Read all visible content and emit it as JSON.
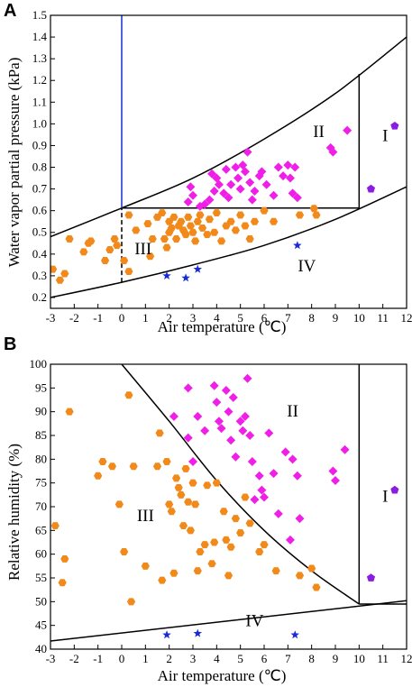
{
  "chart_data": [
    {
      "panel": "A",
      "type": "scatter",
      "xlabel": "Air temperature (℃)",
      "ylabel": "Water vapor partial pressure (kPa)",
      "xlim": [
        -3,
        12
      ],
      "ylim": [
        0.15,
        1.5
      ],
      "xticks": [
        -3,
        -2,
        -1,
        0,
        1,
        2,
        3,
        4,
        5,
        6,
        7,
        8,
        9,
        10,
        11,
        12
      ],
      "yticks": [
        0.2,
        0.3,
        0.4,
        0.5,
        0.6,
        0.7,
        0.8,
        0.9,
        1.0,
        1.1,
        1.2,
        1.3,
        1.4,
        1.5
      ],
      "ytick_labels": [
        "0.2",
        "0.3",
        "0.4",
        "0.5",
        "0.6",
        "0.7",
        "0.8",
        "0.9",
        "1.0",
        "1.1",
        "1.2",
        "1.3",
        "1.4",
        "1.5"
      ],
      "region_labels": [
        {
          "text": "I",
          "x": 11.1,
          "y": 0.92
        },
        {
          "text": "II",
          "x": 8.3,
          "y": 0.94
        },
        {
          "text": "III",
          "x": 0.9,
          "y": 0.4
        },
        {
          "text": "IV",
          "x": 7.8,
          "y": 0.32
        }
      ],
      "boundaries": [
        {
          "name": "upper-curve",
          "kind": "curve",
          "points": [
            [
              -3,
              0.48
            ],
            [
              0,
              0.612
            ],
            [
              3,
              0.75
            ],
            [
              6,
              0.93
            ],
            [
              9,
              1.14
            ],
            [
              12,
              1.4
            ]
          ],
          "color": "#000000",
          "dash": false
        },
        {
          "name": "lower-curve",
          "kind": "curve",
          "points": [
            [
              -3,
              0.2
            ],
            [
              0,
              0.27
            ],
            [
              3,
              0.35
            ],
            [
              6,
              0.44
            ],
            [
              9,
              0.56
            ],
            [
              12,
              0.71
            ]
          ],
          "color": "#000000",
          "dash": false
        },
        {
          "name": "horizontal-0.61",
          "kind": "line",
          "points": [
            [
              0,
              0.612
            ],
            [
              10,
              0.612
            ]
          ],
          "color": "#000000",
          "dash": false
        },
        {
          "name": "vertical-10",
          "kind": "line",
          "points": [
            [
              10,
              0.612
            ],
            [
              10,
              1.23
            ]
          ],
          "color": "#000000",
          "dash": false
        },
        {
          "name": "blue-vertical-0",
          "kind": "line",
          "points": [
            [
              0,
              0.612
            ],
            [
              0,
              1.5
            ]
          ],
          "color": "#1a2bd6",
          "dash": false
        },
        {
          "name": "dashed-vertical-0",
          "kind": "line",
          "points": [
            [
              0,
              0.27
            ],
            [
              0,
              0.612
            ]
          ],
          "color": "#000000",
          "dash": true
        }
      ],
      "series": [
        {
          "marker": "hexagon",
          "color": "#f28a1b",
          "points": [
            [
              -2.9,
              0.33
            ],
            [
              -2.6,
              0.28
            ],
            [
              -2.4,
              0.31
            ],
            [
              -2.2,
              0.47
            ],
            [
              -1.6,
              0.41
            ],
            [
              -1.4,
              0.45
            ],
            [
              -1.3,
              0.46
            ],
            [
              -0.7,
              0.37
            ],
            [
              -0.5,
              0.42
            ],
            [
              -0.3,
              0.47
            ],
            [
              -0.2,
              0.44
            ],
            [
              0.1,
              0.37
            ],
            [
              0.3,
              0.32
            ],
            [
              0.3,
              0.58
            ],
            [
              0.6,
              0.51
            ],
            [
              1.1,
              0.54
            ],
            [
              1.2,
              0.39
            ],
            [
              1.3,
              0.47
            ],
            [
              1.5,
              0.57
            ],
            [
              1.7,
              0.59
            ],
            [
              1.8,
              0.47
            ],
            [
              1.9,
              0.43
            ],
            [
              2.0,
              0.5
            ],
            [
              2.0,
              0.55
            ],
            [
              2.1,
              0.52
            ],
            [
              2.2,
              0.57
            ],
            [
              2.3,
              0.47
            ],
            [
              2.4,
              0.53
            ],
            [
              2.5,
              0.55
            ],
            [
              2.6,
              0.51
            ],
            [
              2.7,
              0.49
            ],
            [
              2.8,
              0.57
            ],
            [
              2.9,
              0.53
            ],
            [
              3.0,
              0.5
            ],
            [
              3.1,
              0.46
            ],
            [
              3.2,
              0.55
            ],
            [
              3.3,
              0.58
            ],
            [
              3.4,
              0.52
            ],
            [
              3.6,
              0.49
            ],
            [
              3.7,
              0.56
            ],
            [
              3.9,
              0.5
            ],
            [
              4.0,
              0.59
            ],
            [
              4.2,
              0.46
            ],
            [
              4.4,
              0.53
            ],
            [
              4.6,
              0.55
            ],
            [
              4.8,
              0.51
            ],
            [
              5.0,
              0.58
            ],
            [
              5.2,
              0.53
            ],
            [
              5.4,
              0.47
            ],
            [
              5.6,
              0.55
            ],
            [
              6.0,
              0.6
            ],
            [
              6.4,
              0.55
            ],
            [
              7.5,
              0.58
            ],
            [
              8.1,
              0.61
            ],
            [
              8.2,
              0.58
            ]
          ]
        },
        {
          "marker": "diamond",
          "color": "#f01fe8",
          "points": [
            [
              2.8,
              0.64
            ],
            [
              2.9,
              0.71
            ],
            [
              3.0,
              0.67
            ],
            [
              3.3,
              0.62
            ],
            [
              3.5,
              0.63
            ],
            [
              3.7,
              0.65
            ],
            [
              3.8,
              0.77
            ],
            [
              3.9,
              0.69
            ],
            [
              4.0,
              0.75
            ],
            [
              4.1,
              0.72
            ],
            [
              4.3,
              0.68
            ],
            [
              4.4,
              0.79
            ],
            [
              4.5,
              0.66
            ],
            [
              4.6,
              0.72
            ],
            [
              4.8,
              0.8
            ],
            [
              4.9,
              0.75
            ],
            [
              5.0,
              0.7
            ],
            [
              5.1,
              0.81
            ],
            [
              5.2,
              0.78
            ],
            [
              5.3,
              0.87
            ],
            [
              5.4,
              0.73
            ],
            [
              5.5,
              0.65
            ],
            [
              5.6,
              0.69
            ],
            [
              5.8,
              0.76
            ],
            [
              5.9,
              0.78
            ],
            [
              6.1,
              0.72
            ],
            [
              6.4,
              0.67
            ],
            [
              6.6,
              0.8
            ],
            [
              6.8,
              0.76
            ],
            [
              7.0,
              0.81
            ],
            [
              7.1,
              0.75
            ],
            [
              7.2,
              0.68
            ],
            [
              7.3,
              0.8
            ],
            [
              7.4,
              0.66
            ],
            [
              8.8,
              0.89
            ],
            [
              8.9,
              0.87
            ],
            [
              9.5,
              0.97
            ]
          ]
        },
        {
          "marker": "pentagon",
          "color": "#8a1de0",
          "points": [
            [
              10.5,
              0.7
            ],
            [
              11.5,
              0.99
            ]
          ]
        },
        {
          "marker": "star",
          "color": "#1a2bd6",
          "points": [
            [
              1.9,
              0.3
            ],
            [
              2.7,
              0.29
            ],
            [
              3.2,
              0.33
            ],
            [
              7.4,
              0.44
            ]
          ]
        }
      ]
    },
    {
      "panel": "B",
      "type": "scatter",
      "xlabel": "Air temperature (℃)",
      "ylabel": "Relative humidity (%)",
      "xlim": [
        -3,
        12
      ],
      "ylim": [
        40,
        100
      ],
      "xticks": [
        -3,
        -2,
        -1,
        0,
        1,
        2,
        3,
        4,
        5,
        6,
        7,
        8,
        9,
        10,
        11,
        12
      ],
      "yticks": [
        40,
        45,
        50,
        55,
        60,
        65,
        70,
        75,
        80,
        85,
        90,
        95,
        100
      ],
      "ytick_labels": [
        "40",
        "45",
        "50",
        "55",
        "60",
        "65",
        "70",
        "75",
        "80",
        "85",
        "90",
        "95",
        "100"
      ],
      "region_labels": [
        {
          "text": "I",
          "x": 11.1,
          "y": 71
        },
        {
          "text": "II",
          "x": 7.2,
          "y": 89
        },
        {
          "text": "III",
          "x": 1.0,
          "y": 67
        },
        {
          "text": "IV",
          "x": 5.6,
          "y": 44.8
        }
      ],
      "boundaries": [
        {
          "name": "dividing-curve",
          "kind": "curve",
          "points": [
            [
              0,
              100
            ],
            [
              2,
              88
            ],
            [
              4,
              75.5
            ],
            [
              6,
              65
            ],
            [
              8,
              56.5
            ],
            [
              10,
              49.5
            ]
          ],
          "color": "#000000",
          "dash": false
        },
        {
          "name": "vertical-10",
          "kind": "line",
          "points": [
            [
              10,
              49.5
            ],
            [
              10,
              100
            ]
          ],
          "color": "#000000",
          "dash": false
        },
        {
          "name": "horizontal-49.5",
          "kind": "line",
          "points": [
            [
              10,
              49.5
            ],
            [
              12,
              49.5
            ]
          ],
          "color": "#000000",
          "dash": false
        },
        {
          "name": "lower-line",
          "kind": "line",
          "points": [
            [
              -3,
              41.7
            ],
            [
              12,
              50.2
            ]
          ],
          "color": "#000000",
          "dash": false
        }
      ],
      "series": [
        {
          "marker": "hexagon",
          "color": "#f28a1b",
          "points": [
            [
              -2.8,
              66
            ],
            [
              -2.5,
              54
            ],
            [
              -2.4,
              59
            ],
            [
              -2.2,
              90
            ],
            [
              -1.0,
              76.5
            ],
            [
              -0.8,
              79.5
            ],
            [
              -0.4,
              78.5
            ],
            [
              -0.1,
              70.5
            ],
            [
              0.1,
              60.5
            ],
            [
              0.3,
              93.5
            ],
            [
              0.4,
              50
            ],
            [
              0.5,
              78.5
            ],
            [
              1.0,
              57.5
            ],
            [
              1.5,
              78.5
            ],
            [
              1.6,
              85.5
            ],
            [
              1.7,
              54.5
            ],
            [
              1.9,
              79.5
            ],
            [
              2.0,
              70.5
            ],
            [
              2.1,
              69
            ],
            [
              2.2,
              56
            ],
            [
              2.3,
              76
            ],
            [
              2.4,
              74
            ],
            [
              2.5,
              72.5
            ],
            [
              2.6,
              66
            ],
            [
              2.7,
              78
            ],
            [
              2.8,
              71
            ],
            [
              2.9,
              65
            ],
            [
              3.0,
              75
            ],
            [
              3.1,
              70.5
            ],
            [
              3.2,
              56.5
            ],
            [
              3.3,
              60.5
            ],
            [
              3.5,
              62
            ],
            [
              3.6,
              74.5
            ],
            [
              3.8,
              58
            ],
            [
              3.9,
              62.5
            ],
            [
              4.0,
              75
            ],
            [
              4.3,
              69
            ],
            [
              4.4,
              63
            ],
            [
              4.5,
              55.5
            ],
            [
              4.6,
              61.5
            ],
            [
              4.8,
              67.5
            ],
            [
              5.0,
              64.5
            ],
            [
              5.2,
              72
            ],
            [
              5.4,
              66.5
            ],
            [
              5.8,
              60.5
            ],
            [
              6.0,
              62
            ],
            [
              6.5,
              56.5
            ],
            [
              7.5,
              55.5
            ],
            [
              8.0,
              57
            ],
            [
              8.2,
              53
            ]
          ]
        },
        {
          "marker": "diamond",
          "color": "#f01fe8",
          "points": [
            [
              2.2,
              89
            ],
            [
              2.8,
              95
            ],
            [
              2.8,
              84.5
            ],
            [
              3.0,
              79.5
            ],
            [
              3.2,
              89
            ],
            [
              3.5,
              86
            ],
            [
              3.9,
              95.5
            ],
            [
              4.0,
              92
            ],
            [
              4.1,
              88
            ],
            [
              4.2,
              86.5
            ],
            [
              4.4,
              94.5
            ],
            [
              4.5,
              90
            ],
            [
              4.6,
              84
            ],
            [
              4.7,
              93
            ],
            [
              4.8,
              80.5
            ],
            [
              5.0,
              88
            ],
            [
              5.1,
              86
            ],
            [
              5.2,
              89
            ],
            [
              5.3,
              97
            ],
            [
              5.4,
              85
            ],
            [
              5.5,
              79.5
            ],
            [
              5.6,
              71.5
            ],
            [
              5.8,
              76.5
            ],
            [
              5.9,
              73.5
            ],
            [
              6.0,
              72
            ],
            [
              6.2,
              85.5
            ],
            [
              6.4,
              77
            ],
            [
              6.6,
              68.5
            ],
            [
              6.9,
              81.5
            ],
            [
              7.1,
              63
            ],
            [
              7.2,
              80
            ],
            [
              7.4,
              76.5
            ],
            [
              7.5,
              67.5
            ],
            [
              8.9,
              77.5
            ],
            [
              9.0,
              75.5
            ],
            [
              9.4,
              82
            ]
          ]
        },
        {
          "marker": "pentagon",
          "color": "#8a1de0",
          "points": [
            [
              10.5,
              55
            ],
            [
              11.5,
              73.5
            ]
          ]
        },
        {
          "marker": "star",
          "color": "#1a2bd6",
          "points": [
            [
              1.9,
              43
            ],
            [
              3.2,
              43.3
            ],
            [
              7.3,
              43
            ]
          ]
        }
      ]
    }
  ]
}
